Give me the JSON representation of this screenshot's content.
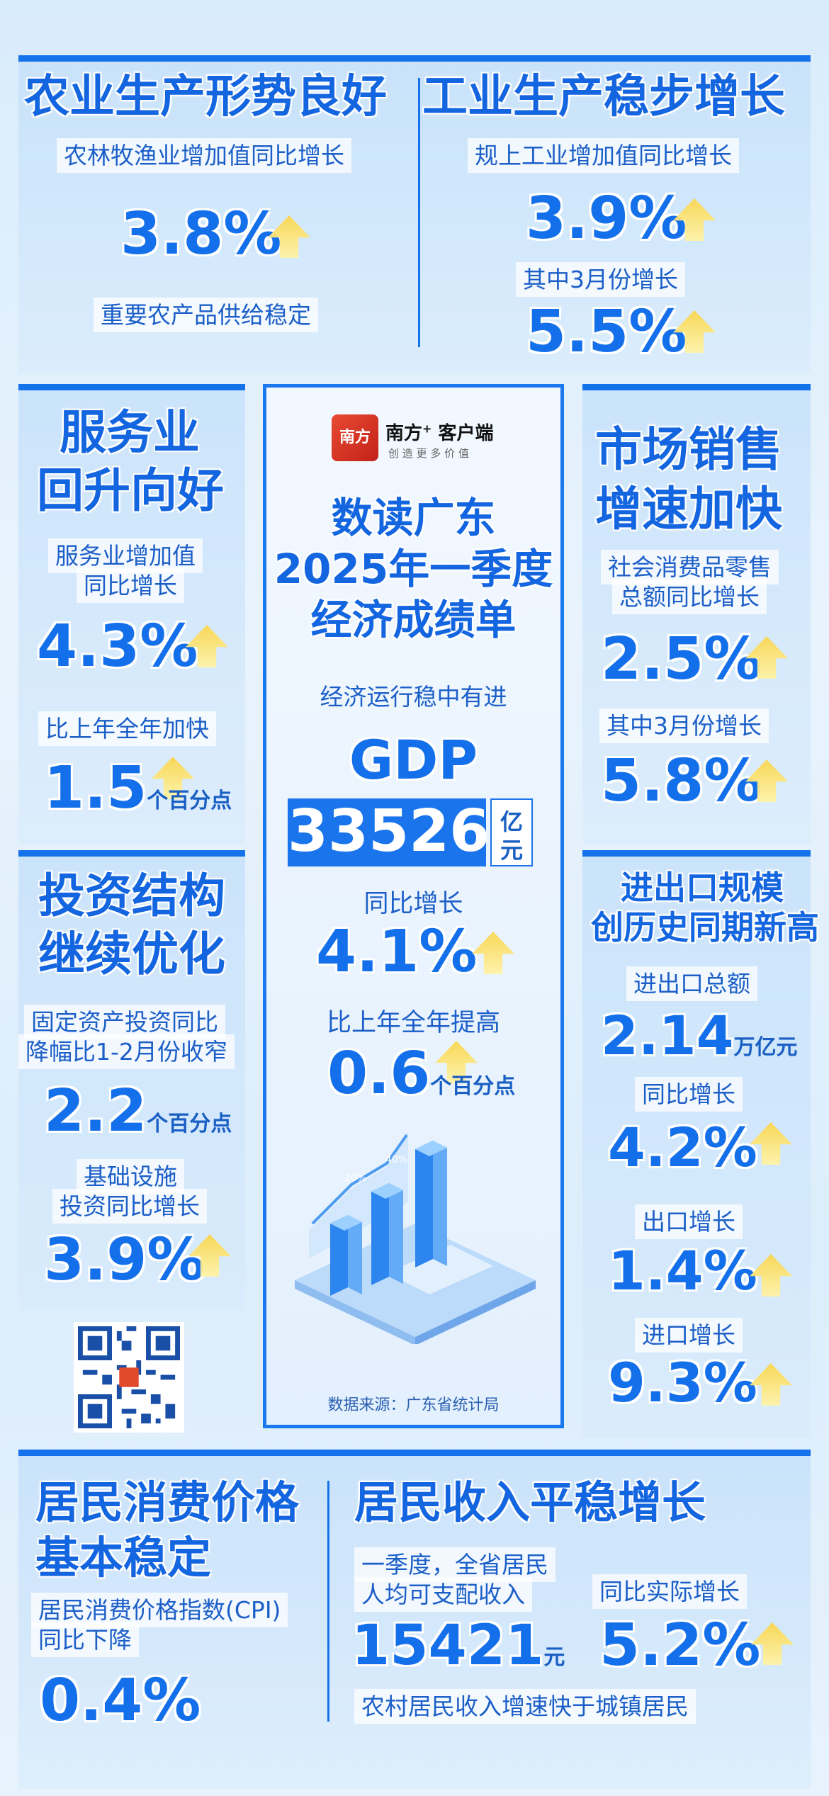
{
  "agri": {
    "title": "农业生产形势良好",
    "label": "农林牧渔业增加值同比增长",
    "value": "3.8%",
    "note": "重要农产品供给稳定"
  },
  "industry": {
    "title": "工业生产稳步增长",
    "label1": "规上工业增加值同比增长",
    "value1": "3.9%",
    "label2": "其中3月份增长",
    "value2": "5.5%"
  },
  "service": {
    "title1": "服务业",
    "title2": "回升向好",
    "label1a": "服务业增加值",
    "label1b": "同比增长",
    "value1": "4.3%",
    "label2": "比上年全年加快",
    "value2": "1.5",
    "unit2": "个百分点"
  },
  "invest": {
    "title1": "投资结构",
    "title2": "继续优化",
    "label1a": "固定资产投资同比",
    "label1b": "降幅比1-2月份收窄",
    "value1": "2.2",
    "unit1": "个百分点",
    "label2a": "基础设施",
    "label2b": "投资同比增长",
    "value2": "3.9%"
  },
  "market": {
    "title1": "市场销售",
    "title2": "增速加快",
    "label1a": "社会消费品零售",
    "label1b": "总额同比增长",
    "value1": "2.5%",
    "label2": "其中3月份增长",
    "value2": "5.8%"
  },
  "trade": {
    "title1": "进出口规模",
    "title2": "创历史同期新高",
    "label1": "进出口总额",
    "value1": "2.14",
    "unit1": "万亿元",
    "label2": "同比增长",
    "value2": "4.2%",
    "label3": "出口增长",
    "value3": "1.4%",
    "label4": "进口增长",
    "value4": "9.3%"
  },
  "center": {
    "logo_name": "南方",
    "logo_plus": "+",
    "logo_app": "客户端",
    "logo_slogan": "创 造 更 多 价 值",
    "logo_mark": "南方",
    "title1": "数读广东",
    "title2": "2025年一季度",
    "title3": "经济成绩单",
    "subtitle": "经济运行稳中有进",
    "gdp_label": "GDP",
    "gdp_value": "33526",
    "gdp_unit1": "亿",
    "gdp_unit2": "元",
    "growth_label": "同比增长",
    "growth_value": "4.1%",
    "raise_label": "比上年全年提高",
    "raise_value": "0.6",
    "raise_unit": "个百分点",
    "bar1": "20%",
    "bar2": "40%",
    "source": "数据来源：广东省统计局"
  },
  "cpi": {
    "title1": "居民消费价格",
    "title2": "基本稳定",
    "label1": "居民消费价格指数(CPI)",
    "label2": "同比下降",
    "value": "0.4%"
  },
  "income": {
    "title": "居民收入平稳增长",
    "label1a": "一季度，全省居民",
    "label1b": "人均可支配收入",
    "value1": "15421",
    "unit1": "元",
    "label2": "同比实际增长",
    "value2": "5.2%",
    "note": "农村居民收入增速快于城镇居民"
  },
  "colors": {
    "primary": "#1473ea",
    "arrow": "#f9d64f"
  }
}
